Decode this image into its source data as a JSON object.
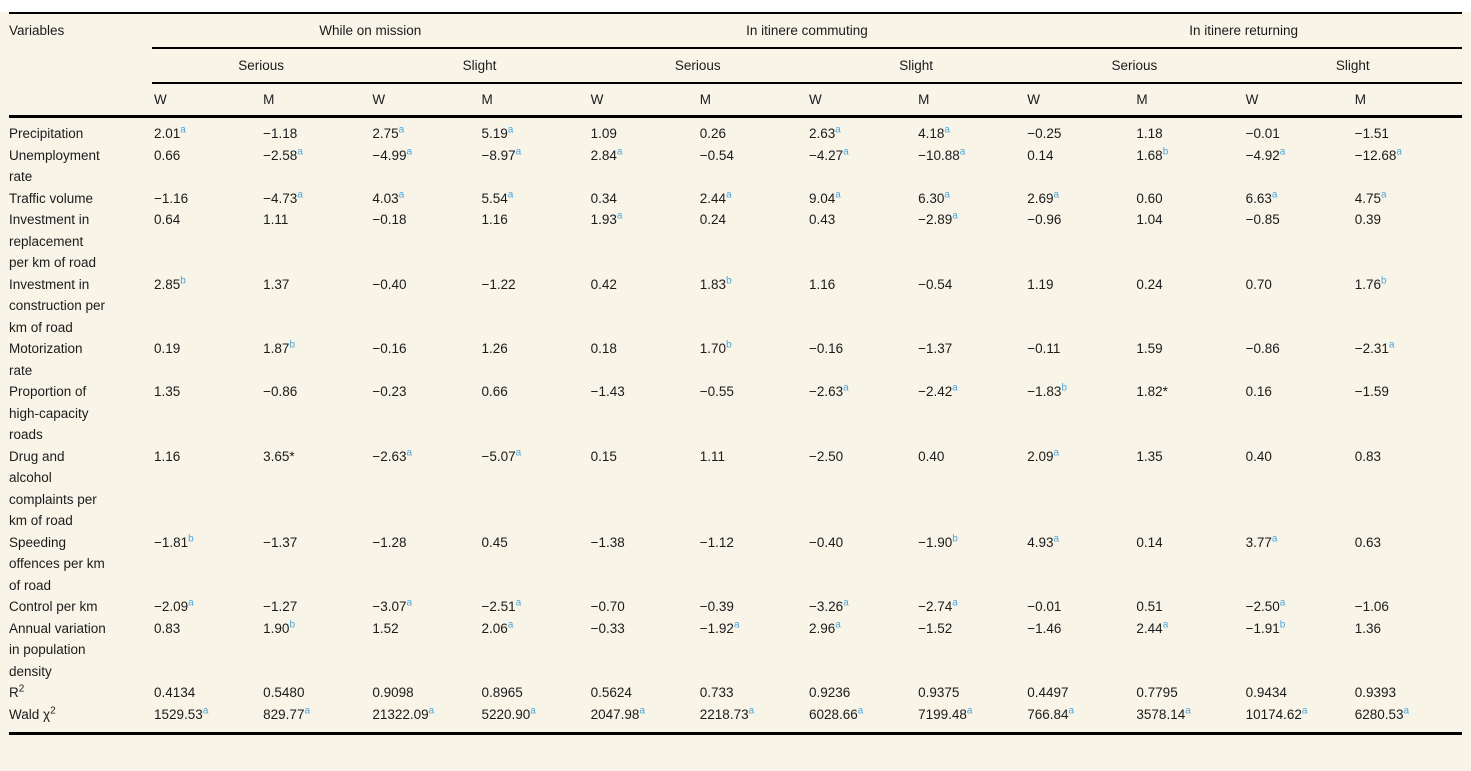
{
  "colors": {
    "page_background": "#f8f4e8",
    "table_background": "#f8f4e8",
    "rule": "#000000",
    "text": "#1b1b1b",
    "significance_marker": "#4ba7dd"
  },
  "table": {
    "corner_label": "Variables",
    "groups": [
      {
        "label": "While on mission",
        "subgroups": [
          "Serious",
          "Slight"
        ]
      },
      {
        "label": "In itinere commuting",
        "subgroups": [
          "Serious",
          "Slight"
        ]
      },
      {
        "label": "In itinere returning",
        "subgroups": [
          "Serious",
          "Slight"
        ]
      }
    ],
    "col_labels": [
      "W",
      "M"
    ],
    "rows": [
      {
        "label": "Precipitation",
        "cells": [
          "2.01^a",
          "−1.18",
          "2.75^a",
          "5.19^a",
          "1.09",
          "0.26",
          "2.63^a",
          "4.18^a",
          "−0.25",
          "1.18",
          "−0.01",
          "−1.51"
        ]
      },
      {
        "label": "Unemployment rate",
        "cells": [
          "0.66",
          "−2.58^a",
          "−4.99^a",
          "−8.97^a",
          "2.84^a",
          "−0.54",
          "−4.27^a",
          "−10.88^a",
          "0.14",
          "1.68^b",
          "−4.92^a",
          "−12.68^a"
        ]
      },
      {
        "label": "Traffic volume",
        "cells": [
          "−1.16",
          "−4.73^a",
          "4.03^a",
          "5.54^a",
          "0.34",
          "2.44^a",
          "9.04^a",
          "6.30^a",
          "2.69^a",
          "0.60",
          "6.63^a",
          "4.75^a"
        ]
      },
      {
        "label": "Investment in replacement per km of road",
        "cells": [
          "0.64",
          "1.11",
          "−0.18",
          "1.16",
          "1.93^a",
          "0.24",
          "0.43",
          "−2.89^a",
          "−0.96",
          "1.04",
          "−0.85",
          "0.39"
        ]
      },
      {
        "label": "Investment in construction per km of road",
        "cells": [
          "2.85^b",
          "1.37",
          "−0.40",
          "−1.22",
          "0.42",
          "1.83^b",
          "1.16",
          "−0.54",
          "1.19",
          "0.24",
          "0.70",
          "1.76^b"
        ]
      },
      {
        "label": "Motorization rate",
        "cells": [
          "0.19",
          "1.87^b",
          "−0.16",
          "1.26",
          "0.18",
          "1.70^b",
          "−0.16",
          "−1.37",
          "−0.11",
          "1.59",
          "−0.86",
          "−2.31^a"
        ]
      },
      {
        "label": "Proportion of high-capacity roads",
        "cells": [
          "1.35",
          "−0.86",
          "−0.23",
          "0.66",
          "−1.43",
          "−0.55",
          "−2.63^a",
          "−2.42^a",
          "−1.83^b",
          "1.82*",
          "0.16",
          "−1.59"
        ]
      },
      {
        "label": "Drug and alcohol complaints per km of road",
        "cells": [
          "1.16",
          "3.65*",
          "−2.63^a",
          "−5.07^a",
          "0.15",
          "1.11",
          "−2.50",
          "0.40",
          "2.09^a",
          "1.35",
          "0.40",
          "0.83"
        ]
      },
      {
        "label": "Speeding offences per km of road",
        "cells": [
          "−1.81^b",
          "−1.37",
          "−1.28",
          "0.45",
          "−1.38",
          "−1.12",
          "−0.40",
          "−1.90^b",
          "4.93^a",
          "0.14",
          "3.77^a",
          "0.63"
        ]
      },
      {
        "label": "Control per km",
        "cells": [
          "−2.09^a",
          "−1.27",
          "−3.07^a",
          "−2.51^a",
          "−0.70",
          "−0.39",
          "−3.26^a",
          "−2.74^a",
          "−0.01",
          "0.51",
          "−2.50^a",
          "−1.06"
        ]
      },
      {
        "label": "Annual variation in population density",
        "cells": [
          "0.83",
          "1.90^b",
          "1.52",
          "2.06^a",
          "−0.33",
          "−1.92^a",
          "2.96^a",
          "−1.52",
          "−1.46",
          "2.44^a",
          "−1.91^b",
          "1.36"
        ]
      },
      {
        "label": "R",
        "label_sup": "2",
        "cells": [
          "0.4134",
          "0.5480",
          "0.9098",
          "0.8965",
          "0.5624",
          "0.733",
          "0.9236",
          "0.9375",
          "0.4497",
          "0.7795",
          "0.9434",
          "0.9393"
        ]
      },
      {
        "label": "Wald χ",
        "label_sup": "2",
        "cells": [
          "1529.53^a",
          "829.77^a",
          "21322.09^a",
          "5220.90^a",
          "2047.98^a",
          "2218.73^a",
          "6028.66^a",
          "7199.48^a",
          "766.84^a",
          "3578.14^a",
          "10174.62^a",
          "6280.53^a"
        ]
      }
    ]
  }
}
